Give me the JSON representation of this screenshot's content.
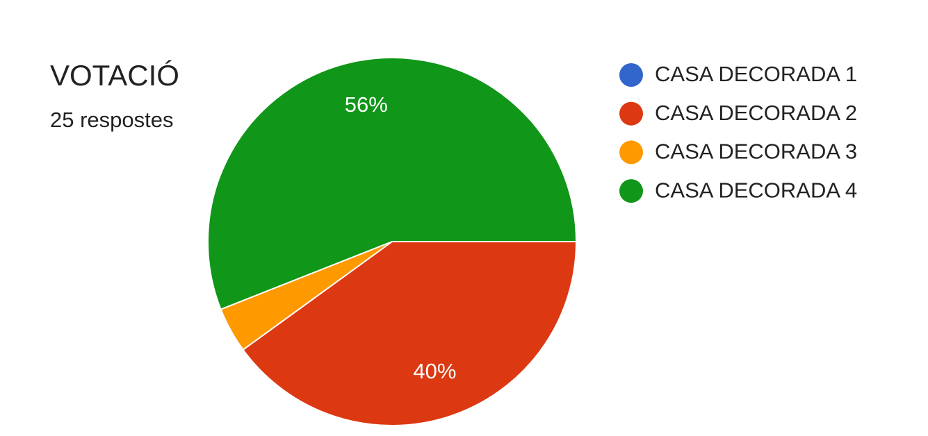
{
  "chart_data": {
    "type": "pie",
    "title": "VOTACIÓ",
    "subtitle": "25 respostes",
    "categories": [
      "CASA DECORADA 1",
      "CASA DECORADA 2",
      "CASA DECORADA 3",
      "CASA DECORADA 4"
    ],
    "values": [
      0,
      40,
      4,
      56
    ],
    "value_labels": [
      null,
      "40%",
      null,
      "56%"
    ],
    "colors": [
      "#3366cc",
      "#dc3912",
      "#ff9900",
      "#109618"
    ],
    "legend": "right"
  }
}
